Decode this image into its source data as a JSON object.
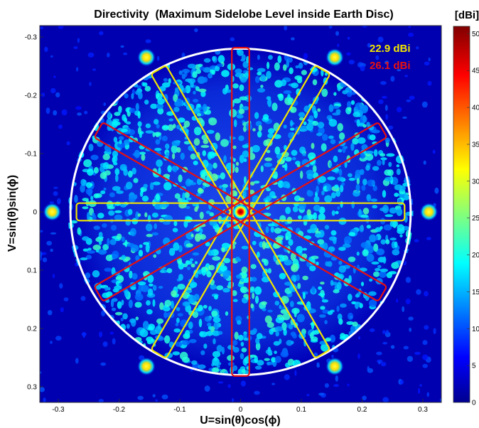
{
  "chart_data": {
    "type": "heatmap",
    "title": "Directivity  (Maximum Sidelobe Level inside Earth Disc)",
    "xlabel": "U=sin(θ)cos(ϕ)",
    "ylabel": "V=sin(θ)sin(ϕ)",
    "xlim": [
      -0.32,
      0.32
    ],
    "ylim": [
      -0.32,
      0.32
    ],
    "y_axis_reversed": true,
    "x_ticks": [
      "-0.3",
      "-0.2",
      "-0.1",
      "0",
      "0.1",
      "0.2",
      "0.3"
    ],
    "y_ticks": [
      "-0.3",
      "-0.2",
      "-0.1",
      "0",
      "0.1",
      "0.2",
      "0.3"
    ],
    "colorbar": {
      "unit": "[dBi]",
      "range": [
        0,
        51
      ],
      "ticks": [
        "0",
        "5",
        "10",
        "15",
        "20",
        "25",
        "30",
        "35",
        "40",
        "45",
        "50"
      ],
      "colormap": "jet"
    },
    "earth_disc_radius": 0.28,
    "main_beam": {
      "u": 0,
      "v": 0,
      "peak_dBi": 51
    },
    "grating_lobes": [
      {
        "u": -0.155,
        "v": -0.265
      },
      {
        "u": 0.155,
        "v": -0.265
      },
      {
        "u": -0.31,
        "v": 0
      },
      {
        "u": 0.31,
        "v": 0
      },
      {
        "u": -0.155,
        "v": 0.265
      },
      {
        "u": 0.155,
        "v": 0.265
      }
    ],
    "cuts": [
      {
        "angle_deg": 0,
        "color": "#f2e600",
        "length": 0.54,
        "width": 0.03
      },
      {
        "angle_deg": 60,
        "color": "#f2e600",
        "length": 0.54,
        "width": 0.03
      },
      {
        "angle_deg": 120,
        "color": "#f2e600",
        "length": 0.54,
        "width": 0.03
      },
      {
        "angle_deg": 30,
        "color": "#e81010",
        "length": 0.54,
        "width": 0.03
      },
      {
        "angle_deg": 90,
        "color": "#e81010",
        "length": 0.54,
        "width": 0.03
      },
      {
        "angle_deg": 150,
        "color": "#e81010",
        "length": 0.54,
        "width": 0.03
      }
    ],
    "annotations": [
      {
        "text": "22.9 dBi",
        "color": "#f2e600"
      },
      {
        "text": "26.1 dBi",
        "color": "#e81010"
      }
    ]
  }
}
